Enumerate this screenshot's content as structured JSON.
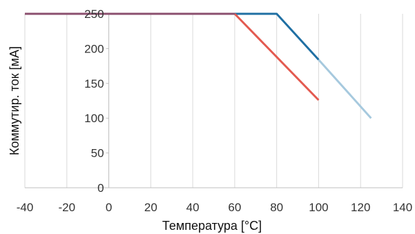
{
  "chart_data": {
    "type": "line",
    "title": "",
    "xlabel": "Температура [°C]",
    "ylabel": "Коммутир. ток [мА]",
    "xlim": [
      -40,
      140
    ],
    "ylim": [
      0,
      250
    ],
    "x_ticks": [
      -40,
      -20,
      0,
      20,
      40,
      60,
      80,
      100,
      120,
      140
    ],
    "y_ticks": [
      0,
      50,
      100,
      150,
      200,
      250
    ],
    "x_tick_labels": [
      "-40",
      "-20",
      "0",
      "20",
      "40",
      "60",
      "80",
      "100",
      "120",
      "140"
    ],
    "y_tick_labels": [
      "0",
      "50",
      "100",
      "150",
      "200",
      "250"
    ],
    "grid": "vertical",
    "legend": "none",
    "series": [
      {
        "color": "#1f6fa3",
        "x": [
          -40,
          60,
          80,
          100
        ],
        "values": [
          250,
          250,
          250,
          184
        ]
      },
      {
        "color": "#a6c9de",
        "x": [
          100,
          125
        ],
        "values": [
          184,
          100
        ]
      },
      {
        "color": "#e35a50",
        "x": [
          60,
          100
        ],
        "values": [
          250,
          126
        ]
      },
      {
        "color": "#8b4f6e",
        "x": [
          -40,
          60
        ],
        "values": [
          250,
          250
        ]
      }
    ]
  }
}
